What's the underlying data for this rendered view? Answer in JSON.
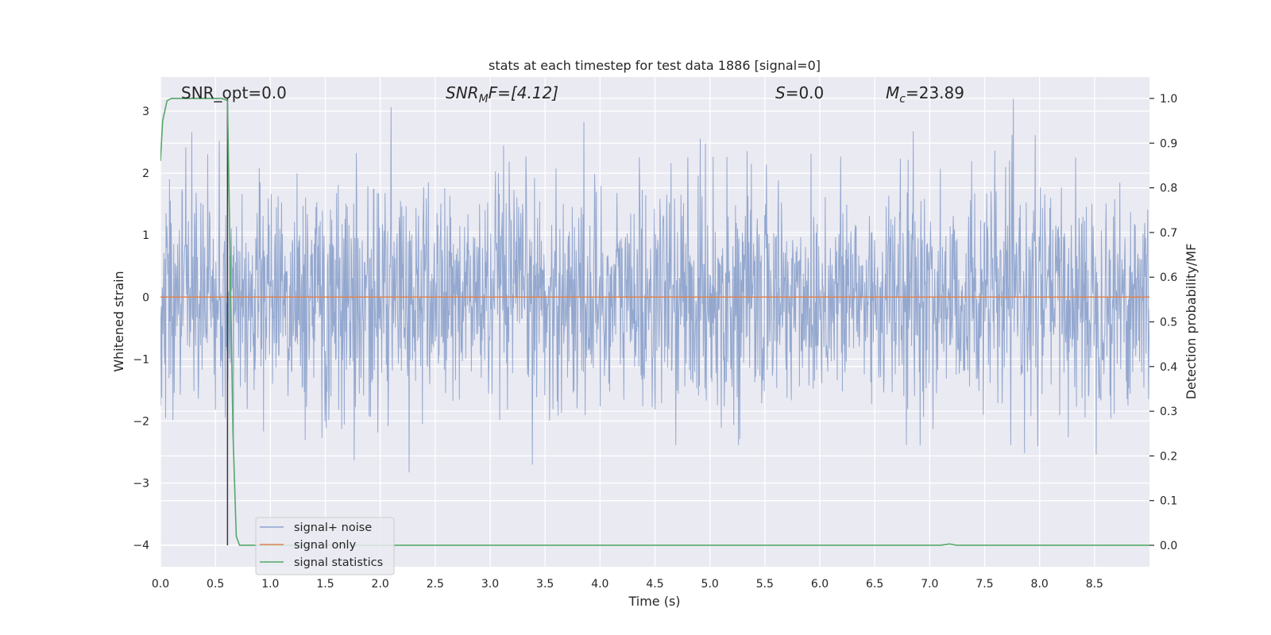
{
  "chart_data": {
    "type": "line",
    "title": "stats at each timestep for test data 1886 [signal=0]",
    "xlabel": "Time (s)",
    "ylabel_left": "Whitened strain",
    "ylabel_right": "Detection probability/MF",
    "xlim": [
      0.0,
      9.0
    ],
    "ylim_left": [
      -4.35,
      3.55
    ],
    "ylim_right": [
      -0.048,
      1.048
    ],
    "xticks": [
      0.0,
      0.5,
      1.0,
      1.5,
      2.0,
      2.5,
      3.0,
      3.5,
      4.0,
      4.5,
      5.0,
      5.5,
      6.0,
      6.5,
      7.0,
      7.5,
      8.0,
      8.5
    ],
    "xtick_labels": [
      "0.0",
      "0.5",
      "1.0",
      "1.5",
      "2.0",
      "2.5",
      "3.0",
      "3.5",
      "4.0",
      "4.5",
      "5.0",
      "5.5",
      "6.0",
      "6.5",
      "7.0",
      "7.5",
      "8.0",
      "8.5"
    ],
    "yticks_left": [
      3,
      2,
      1,
      0,
      -1,
      -2,
      -3,
      -4
    ],
    "ytick_labels_left": [
      "3",
      "2",
      "1",
      "0",
      "−1",
      "−2",
      "−3",
      "−4"
    ],
    "yticks_right": [
      1.0,
      0.9,
      0.8,
      0.7,
      0.6,
      0.5,
      0.4,
      0.3,
      0.2,
      0.1,
      0.0
    ],
    "ytick_labels_right": [
      "1.0",
      "0.9",
      "0.8",
      "0.7",
      "0.6",
      "0.5",
      "0.4",
      "0.3",
      "0.2",
      "0.1",
      "0.0"
    ],
    "grid": true,
    "legend_position": "lower-left",
    "annotations": {
      "snr_opt": "SNR_opt=0.0",
      "snr_mf_main": "SNR",
      "snr_mf_sub": "M",
      "snr_mf_rest": "F=[4.12]",
      "s_main": "S",
      "s_rest": "=0.0",
      "mc_main": "M",
      "mc_sub": "c",
      "mc_rest": "=23.89"
    },
    "series": [
      {
        "name": "signal+ noise",
        "color": "#8fa4cc",
        "axis": "left",
        "description_range": [
          -4.0,
          3.2
        ],
        "noise_seed": 1886,
        "noise_sigma": 0.9,
        "x_range": [
          0.0,
          9.0
        ],
        "num_samples": 2304
      },
      {
        "name": "signal only",
        "color": "#dd8452",
        "axis": "left",
        "x": [
          0.0,
          9.0
        ],
        "y": [
          0.0,
          0.0
        ]
      },
      {
        "name": "signal statistics",
        "color": "#55a868",
        "axis": "right",
        "x": [
          0.0,
          0.02,
          0.06,
          0.1,
          0.2,
          0.3,
          0.4,
          0.5,
          0.56,
          0.61,
          0.63,
          0.66,
          0.69,
          0.72,
          0.8,
          1.0,
          2.0,
          3.0,
          4.0,
          5.0,
          6.0,
          7.0,
          7.1,
          7.18,
          7.25,
          8.0,
          9.0
        ],
        "y": [
          0.86,
          0.95,
          0.995,
          1.0,
          1.0,
          1.0,
          1.0,
          1.0,
          1.0,
          0.995,
          0.7,
          0.25,
          0.02,
          0.0,
          0.0,
          0.0,
          0.0,
          0.0,
          0.0,
          0.0,
          0.0,
          0.0,
          0.0,
          0.003,
          0.0,
          0.0,
          0.0
        ]
      }
    ],
    "marker_line": {
      "color": "#3a3a3a",
      "x": [
        0.6,
        0.61,
        0.61
      ],
      "y_right": [
        1.0,
        1.0,
        0.0
      ]
    }
  }
}
